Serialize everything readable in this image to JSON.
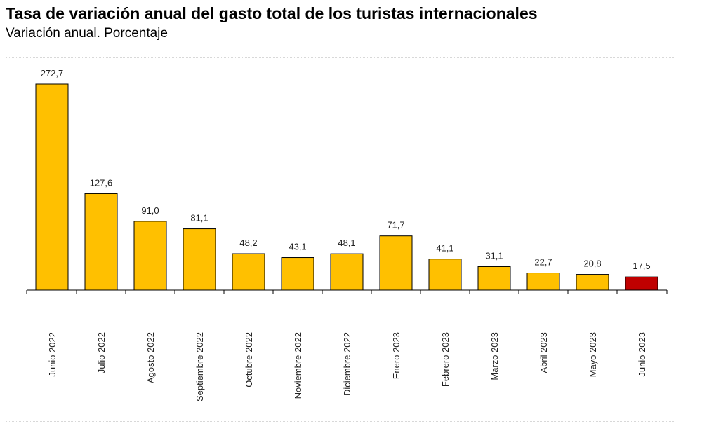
{
  "chart_data": {
    "type": "bar",
    "title": "Tasa de variación anual del gasto total de los turistas internacionales",
    "subtitle": "Variación anual. Porcentaje",
    "categories": [
      "Junio 2022",
      "Julio 2022",
      "Agosto 2022",
      "Septiembre 2022",
      "Octubre 2022",
      "Noviembre 2022",
      "Diciembre 2022",
      "Enero 2023",
      "Febrero 2023",
      "Marzo 2023",
      "Abril 2023",
      "Mayo 2023",
      "Junio 2023"
    ],
    "values": [
      272.7,
      127.6,
      91.0,
      81.1,
      48.2,
      43.1,
      48.1,
      71.7,
      41.1,
      31.1,
      22.7,
      20.8,
      17.5
    ],
    "value_labels": [
      "272,7",
      "127,6",
      "91,0",
      "81,1",
      "48,2",
      "43,1",
      "48,1",
      "71,7",
      "41,1",
      "31,1",
      "22,7",
      "20,8",
      "17,5"
    ],
    "xlabel": "",
    "ylabel": "",
    "ylim": [
      0,
      272.7
    ],
    "grid": false,
    "colors": {
      "bar": "#FFC000",
      "highlight": "#C00000",
      "bar_edge": "#000000"
    },
    "highlight_index": 12
  }
}
